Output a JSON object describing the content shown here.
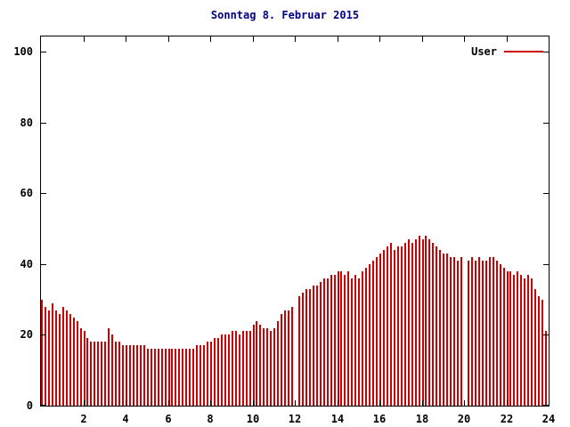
{
  "title": "Sonntag 8. Februar 2015",
  "legend": {
    "label": "User"
  },
  "colors": {
    "series": "#cc0000",
    "axis": "#000000",
    "title": "#000080",
    "background": "#ffffff"
  },
  "chart_data": {
    "type": "bar",
    "title": "Sonntag 8. Februar 2015",
    "xlabel": "",
    "ylabel": "",
    "xlim": [
      0,
      24
    ],
    "ylim": [
      0,
      100
    ],
    "x_ticks": [
      2,
      4,
      6,
      8,
      10,
      12,
      14,
      16,
      18,
      20,
      22,
      24
    ],
    "y_ticks": [
      0,
      20,
      40,
      60,
      80,
      100
    ],
    "grid": false,
    "legend_position": "top-right",
    "series": [
      {
        "name": "User",
        "color": "#cc0000",
        "interval_minutes": 10,
        "x_start_hour": 0,
        "values": [
          30,
          28,
          27,
          29,
          27,
          26,
          28,
          27,
          26,
          25,
          24,
          22,
          21,
          19,
          18,
          18,
          18,
          18,
          18,
          22,
          20,
          18,
          18,
          17,
          17,
          17,
          17,
          17,
          17,
          17,
          16,
          16,
          16,
          16,
          16,
          16,
          16,
          16,
          16,
          16,
          16,
          16,
          16,
          16,
          17,
          17,
          17,
          18,
          18,
          19,
          19,
          20,
          20,
          20,
          21,
          21,
          20,
          21,
          21,
          21,
          23,
          24,
          23,
          22,
          22,
          21,
          22,
          24,
          26,
          27,
          27,
          28,
          0,
          31,
          32,
          33,
          33,
          34,
          34,
          35,
          36,
          36,
          37,
          37,
          38,
          38,
          37,
          38,
          36,
          37,
          36,
          38,
          39,
          40,
          41,
          42,
          43,
          44,
          45,
          46,
          44,
          45,
          45,
          46,
          47,
          46,
          47,
          48,
          47,
          48,
          47,
          46,
          45,
          44,
          43,
          43,
          42,
          42,
          41,
          42,
          0,
          41,
          42,
          41,
          42,
          41,
          41,
          42,
          42,
          41,
          40,
          39,
          38,
          38,
          37,
          38,
          37,
          36,
          37,
          36,
          33,
          31,
          30,
          21
        ]
      }
    ]
  }
}
